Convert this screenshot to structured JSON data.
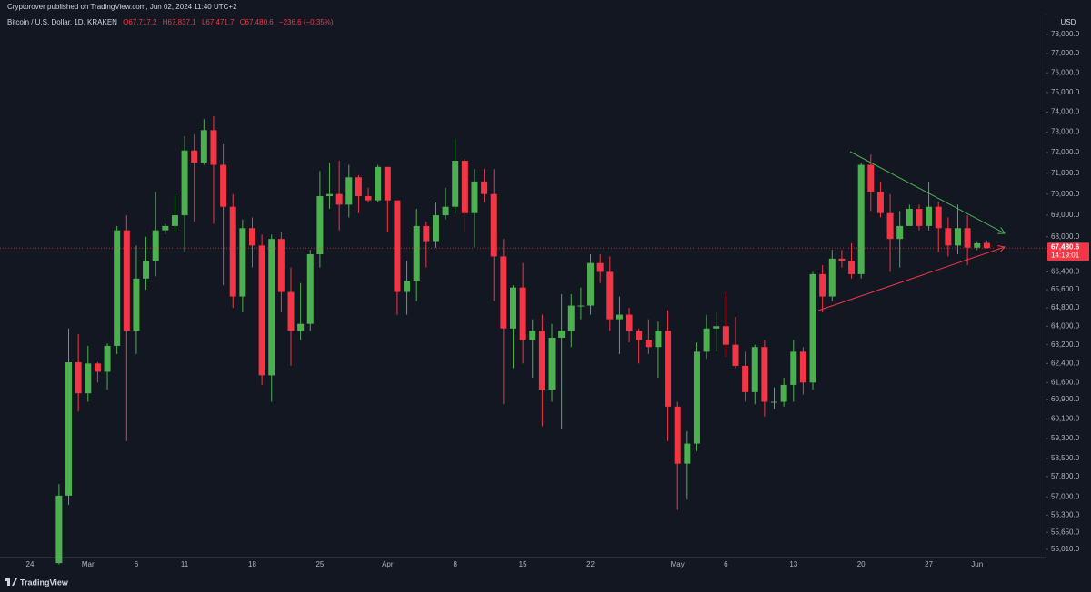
{
  "header": {
    "publisher": "Cryptorover published on TradingView.com, Jun 02, 2024 11:40 UTC+2",
    "footer": "TradingView"
  },
  "legend": {
    "symbol": "Bitcoin / U.S. Dollar, 1D, KRAKEN",
    "open": "O67,717.2",
    "high": "H67,837.1",
    "low": "L67,471.7",
    "close": "C67,480.6",
    "change": "−236.6 (−0.35%)"
  },
  "price_axis": {
    "currency": "USD",
    "last_price_label": "67,480.6",
    "countdown": "14:19:01"
  },
  "chart_data": {
    "type": "candlestick",
    "log_scale": true,
    "grid": false,
    "up_color": "#4caf50",
    "down_color": "#f23645",
    "categories": [
      "24",
      null,
      null,
      null,
      null,
      null,
      "Mar",
      null,
      null,
      null,
      null,
      "6",
      null,
      null,
      null,
      null,
      "11",
      null,
      null,
      null,
      null,
      null,
      null,
      "18",
      null,
      null,
      null,
      null,
      null,
      null,
      "25",
      null,
      null,
      null,
      null,
      null,
      null,
      "Apr",
      null,
      null,
      null,
      null,
      null,
      null,
      "8",
      null,
      null,
      null,
      null,
      null,
      null,
      "15",
      null,
      null,
      null,
      null,
      null,
      null,
      "22",
      null,
      null,
      null,
      null,
      null,
      null,
      null,
      null,
      "May",
      null,
      null,
      null,
      null,
      "6",
      null,
      null,
      null,
      null,
      null,
      null,
      "13",
      null,
      null,
      null,
      null,
      null,
      null,
      "20",
      null,
      null,
      null,
      null,
      null,
      null,
      "27",
      null,
      null,
      null,
      null,
      "Jun",
      null,
      null,
      null,
      null,
      null,
      null
    ],
    "open": [
      null,
      null,
      null,
      54500,
      57050,
      62450,
      61150,
      62400,
      62050,
      63150,
      68300,
      63800,
      66100,
      66900,
      68300,
      68500,
      69000,
      72100,
      71500,
      73100,
      71400,
      69400,
      65300,
      68400,
      67600,
      61900,
      67900,
      65500,
      63800,
      64100,
      67200,
      69900,
      70000,
      69500,
      70800,
      69900,
      69700,
      71300,
      69700,
      65500,
      66000,
      68500,
      67800,
      69000,
      69400,
      71600,
      69100,
      70600,
      70000,
      67100,
      63900,
      65700,
      63400,
      63800,
      61300,
      63500,
      63800,
      64900,
      64900,
      66800,
      66400,
      64300,
      64500,
      63800,
      63400,
      63100,
      63800,
      60600,
      58300,
      59100,
      62900,
      63900,
      64000,
      63200,
      62300,
      61200,
      63100,
      60800,
      60800,
      61500,
      62900,
      61600,
      66300,
      65300,
      67000,
      66900,
      66300,
      71400,
      70100,
      69100,
      67900,
      68500,
      69300,
      68500,
      69400,
      68400,
      67600,
      68400,
      67500,
      67717.2,
      null,
      null,
      null,
      null,
      null
    ],
    "high": [
      null,
      null,
      null,
      57500,
      63900,
      63650,
      63150,
      62450,
      63250,
      68500,
      69000,
      67600,
      68000,
      70100,
      68600,
      70000,
      72800,
      72900,
      73650,
      73800,
      72400,
      70000,
      68800,
      68900,
      68100,
      68100,
      68200,
      66600,
      65900,
      67400,
      71100,
      71500,
      71600,
      71400,
      70900,
      70300,
      71400,
      71300,
      69700,
      66900,
      69300,
      68700,
      69600,
      70300,
      72700,
      71700,
      71200,
      71200,
      71200,
      67900,
      65800,
      66800,
      64300,
      64500,
      64100,
      65400,
      65400,
      65700,
      67200,
      67200,
      67100,
      65300,
      64800,
      63900,
      64300,
      64200,
      64700,
      60800,
      59600,
      63300,
      64500,
      64600,
      65500,
      64400,
      62900,
      63200,
      63400,
      61400,
      61800,
      63400,
      63100,
      66400,
      66700,
      67400,
      67400,
      67700,
      71500,
      71900,
      70600,
      70000,
      69200,
      69500,
      69500,
      70600,
      69600,
      68900,
      69500,
      69000,
      67800,
      67837.1,
      null,
      null,
      null,
      null,
      null
    ],
    "low": [
      null,
      null,
      null,
      54450,
      56700,
      60400,
      60800,
      61600,
      61300,
      62800,
      59200,
      62800,
      65600,
      66200,
      68100,
      68200,
      67300,
      68700,
      71400,
      68600,
      65800,
      64800,
      64600,
      66600,
      61500,
      60800,
      64600,
      62300,
      63400,
      63800,
      66600,
      69300,
      68300,
      68900,
      69100,
      69600,
      69600,
      68200,
      64500,
      64500,
      65100,
      66600,
      67500,
      68800,
      69100,
      68200,
      67500,
      69600,
      65100,
      60700,
      62200,
      62400,
      61800,
      59800,
      60800,
      59700,
      63100,
      64300,
      64500,
      65900,
      63800,
      62800,
      63300,
      62400,
      62800,
      61800,
      59200,
      56500,
      56900,
      58800,
      62600,
      62900,
      62700,
      62200,
      60800,
      60700,
      60200,
      60500,
      60600,
      60800,
      61100,
      61300,
      64600,
      65100,
      66600,
      66100,
      66100,
      69200,
      68900,
      66400,
      66600,
      68500,
      68300,
      68300,
      67300,
      67100,
      67200,
      66700,
      67400,
      67471.7,
      null,
      null,
      null,
      null,
      null
    ],
    "close": [
      null,
      null,
      null,
      57050,
      62450,
      61150,
      62400,
      62050,
      63150,
      68300,
      63800,
      66100,
      66900,
      68300,
      68500,
      69000,
      72100,
      71500,
      73100,
      71400,
      69400,
      65300,
      68400,
      67600,
      61900,
      67900,
      65500,
      63800,
      64100,
      67200,
      69900,
      70000,
      69500,
      70800,
      69900,
      69700,
      71300,
      69700,
      65500,
      66000,
      68500,
      67800,
      69000,
      69400,
      71600,
      69100,
      70600,
      70000,
      67100,
      63900,
      65700,
      63400,
      63800,
      61300,
      63500,
      63800,
      64900,
      64900,
      66800,
      66400,
      64300,
      64500,
      63800,
      63400,
      63100,
      63800,
      60600,
      58300,
      59100,
      62900,
      63900,
      64000,
      63200,
      62300,
      61200,
      63100,
      60800,
      60800,
      61500,
      62900,
      61600,
      66300,
      65300,
      67000,
      66900,
      66300,
      71400,
      70100,
      69100,
      67900,
      68500,
      69300,
      68500,
      69400,
      68400,
      67600,
      68400,
      67500,
      67700,
      67480.6,
      null,
      null,
      null,
      null,
      null
    ],
    "ylim": [
      54740,
      79113
    ],
    "yticks": [
      {
        "value": 78000,
        "label": "78,000.0"
      },
      {
        "value": 77000,
        "label": "77,000.0"
      },
      {
        "value": 76000,
        "label": "76,000.0"
      },
      {
        "value": 75000,
        "label": "75,000.0"
      },
      {
        "value": 74000,
        "label": "74,000.0"
      },
      {
        "value": 73000,
        "label": "73,000.0"
      },
      {
        "value": 72000,
        "label": "72,000.0"
      },
      {
        "value": 71000,
        "label": "71,000.0"
      },
      {
        "value": 70000,
        "label": "70,000.0"
      },
      {
        "value": 69000,
        "label": "69,000.0"
      },
      {
        "value": 68000,
        "label": "68,000.0"
      },
      {
        "value": 66400,
        "label": "66,400.0"
      },
      {
        "value": 65600,
        "label": "65,600.0"
      },
      {
        "value": 64800,
        "label": "64,800.0"
      },
      {
        "value": 64000,
        "label": "64,000.0"
      },
      {
        "value": 63200,
        "label": "63,200.0"
      },
      {
        "value": 62400,
        "label": "62,400.0"
      },
      {
        "value": 61600,
        "label": "61,600.0"
      },
      {
        "value": 60900,
        "label": "60,900.0"
      },
      {
        "value": 60100,
        "label": "60,100.0"
      },
      {
        "value": 59300,
        "label": "59,300.0"
      },
      {
        "value": 58500,
        "label": "58,500.0"
      },
      {
        "value": 57800,
        "label": "57,800.0"
      },
      {
        "value": 57000,
        "label": "57,000.0"
      },
      {
        "value": 56300,
        "label": "56,300.0"
      },
      {
        "value": 55650,
        "label": "55,650.0"
      },
      {
        "value": 55010,
        "label": "55,010.0"
      }
    ]
  }
}
